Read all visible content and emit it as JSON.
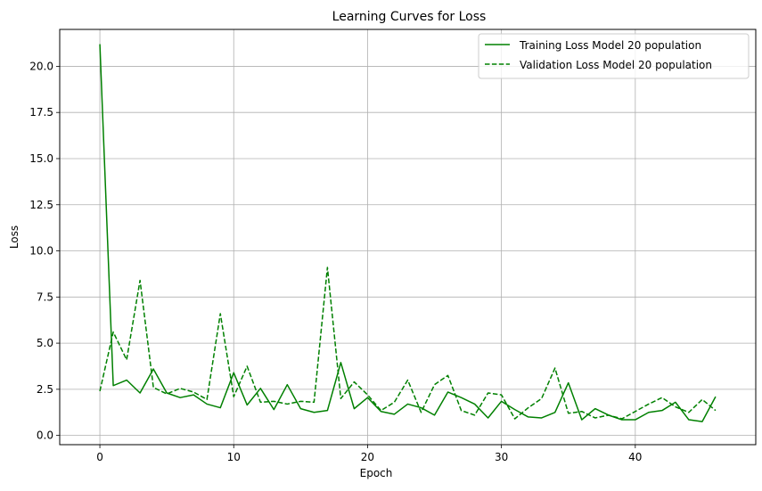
{
  "chart_data": {
    "type": "line",
    "title": "Learning Curves for Loss",
    "xlabel": "Epoch",
    "ylabel": "Loss",
    "xlim": [
      -3,
      49
    ],
    "ylim": [
      -0.5,
      22.0
    ],
    "xticks": [
      0,
      10,
      20,
      30,
      40
    ],
    "xtick_labels": [
      "0",
      "10",
      "20",
      "30",
      "40"
    ],
    "yticks": [
      0,
      2.5,
      5,
      7.5,
      10,
      12.5,
      15,
      17.5,
      20
    ],
    "ytick_labels": [
      "0.0",
      "2.5",
      "5.0",
      "7.5",
      "10.0",
      "12.5",
      "15.0",
      "17.5",
      "20.0"
    ],
    "grid": true,
    "legend_position": "upper right",
    "x": [
      0,
      1,
      2,
      3,
      4,
      5,
      6,
      7,
      8,
      9,
      10,
      11,
      12,
      13,
      14,
      15,
      16,
      17,
      18,
      19,
      20,
      21,
      22,
      23,
      24,
      25,
      26,
      27,
      28,
      29,
      30,
      31,
      32,
      33,
      34,
      35,
      36,
      37,
      38,
      39,
      40,
      41,
      42,
      43,
      44,
      45,
      46
    ],
    "series": [
      {
        "name": "Training Loss Model 20 population",
        "color": "#008000",
        "dash": "solid",
        "values": [
          21.2,
          2.7,
          3.0,
          2.3,
          3.6,
          2.3,
          2.05,
          2.2,
          1.7,
          1.5,
          3.4,
          1.65,
          2.55,
          1.4,
          2.75,
          1.45,
          1.25,
          1.35,
          3.95,
          1.45,
          2.05,
          1.3,
          1.15,
          1.7,
          1.5,
          1.1,
          2.35,
          2.05,
          1.7,
          0.95,
          1.85,
          1.4,
          1.0,
          0.95,
          1.25,
          2.85,
          0.85,
          1.45,
          1.1,
          0.85,
          0.85,
          1.25,
          1.35,
          1.8,
          0.85,
          0.75,
          2.1
        ]
      },
      {
        "name": "Validation Loss Model 20 population",
        "color": "#008000",
        "dash": "dashed",
        "values": [
          2.4,
          5.6,
          4.1,
          8.4,
          2.6,
          2.25,
          2.55,
          2.35,
          1.95,
          6.6,
          2.1,
          3.75,
          1.8,
          1.85,
          1.7,
          1.85,
          1.8,
          9.1,
          2.0,
          2.9,
          2.2,
          1.35,
          1.8,
          3.0,
          1.25,
          2.75,
          3.25,
          1.35,
          1.1,
          2.3,
          2.2,
          0.9,
          1.5,
          2.0,
          3.65,
          1.2,
          1.3,
          0.95,
          1.1,
          0.9,
          1.3,
          1.7,
          2.05,
          1.55,
          1.25,
          1.95,
          1.35
        ]
      }
    ]
  }
}
